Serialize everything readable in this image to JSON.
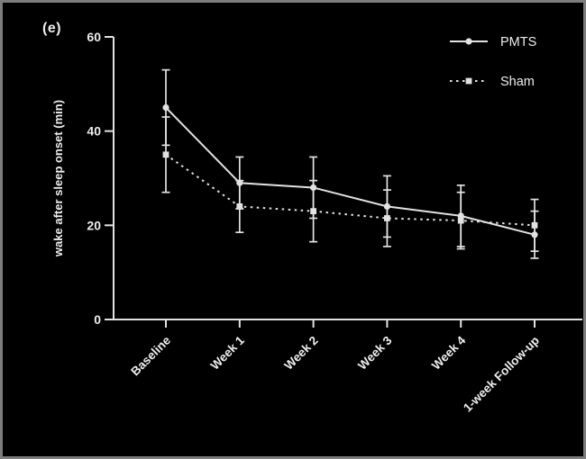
{
  "figure": {
    "panel_label": "(e)",
    "background": "#000000",
    "frame_color": "#7d7d7d",
    "line_color": "#e2e2e2",
    "text_color": "#ededed"
  },
  "chart_data": {
    "type": "line",
    "title": "",
    "xlabel": "",
    "ylabel": "wake after sleep onset (min)",
    "ylim": [
      0,
      60
    ],
    "yticks": [
      0,
      20,
      40,
      60
    ],
    "categories": [
      "Baseline",
      "Week 1",
      "Week 2",
      "Week 3",
      "Week 4",
      "1-week Follow-up"
    ],
    "series": [
      {
        "name": "PMTS",
        "line_style": "solid",
        "marker": "circle",
        "values": [
          45,
          29,
          28,
          24,
          22,
          18
        ],
        "error_bars": [
          8,
          5.5,
          6.5,
          6.5,
          6.5,
          5
        ]
      },
      {
        "name": "Sham",
        "line_style": "dashed",
        "marker": "square",
        "values": [
          35,
          24,
          23,
          21.5,
          21,
          20
        ],
        "error_bars": [
          8,
          5.5,
          6.5,
          6,
          6,
          5.5
        ]
      }
    ],
    "legend_position": "top-right",
    "grid": false
  }
}
